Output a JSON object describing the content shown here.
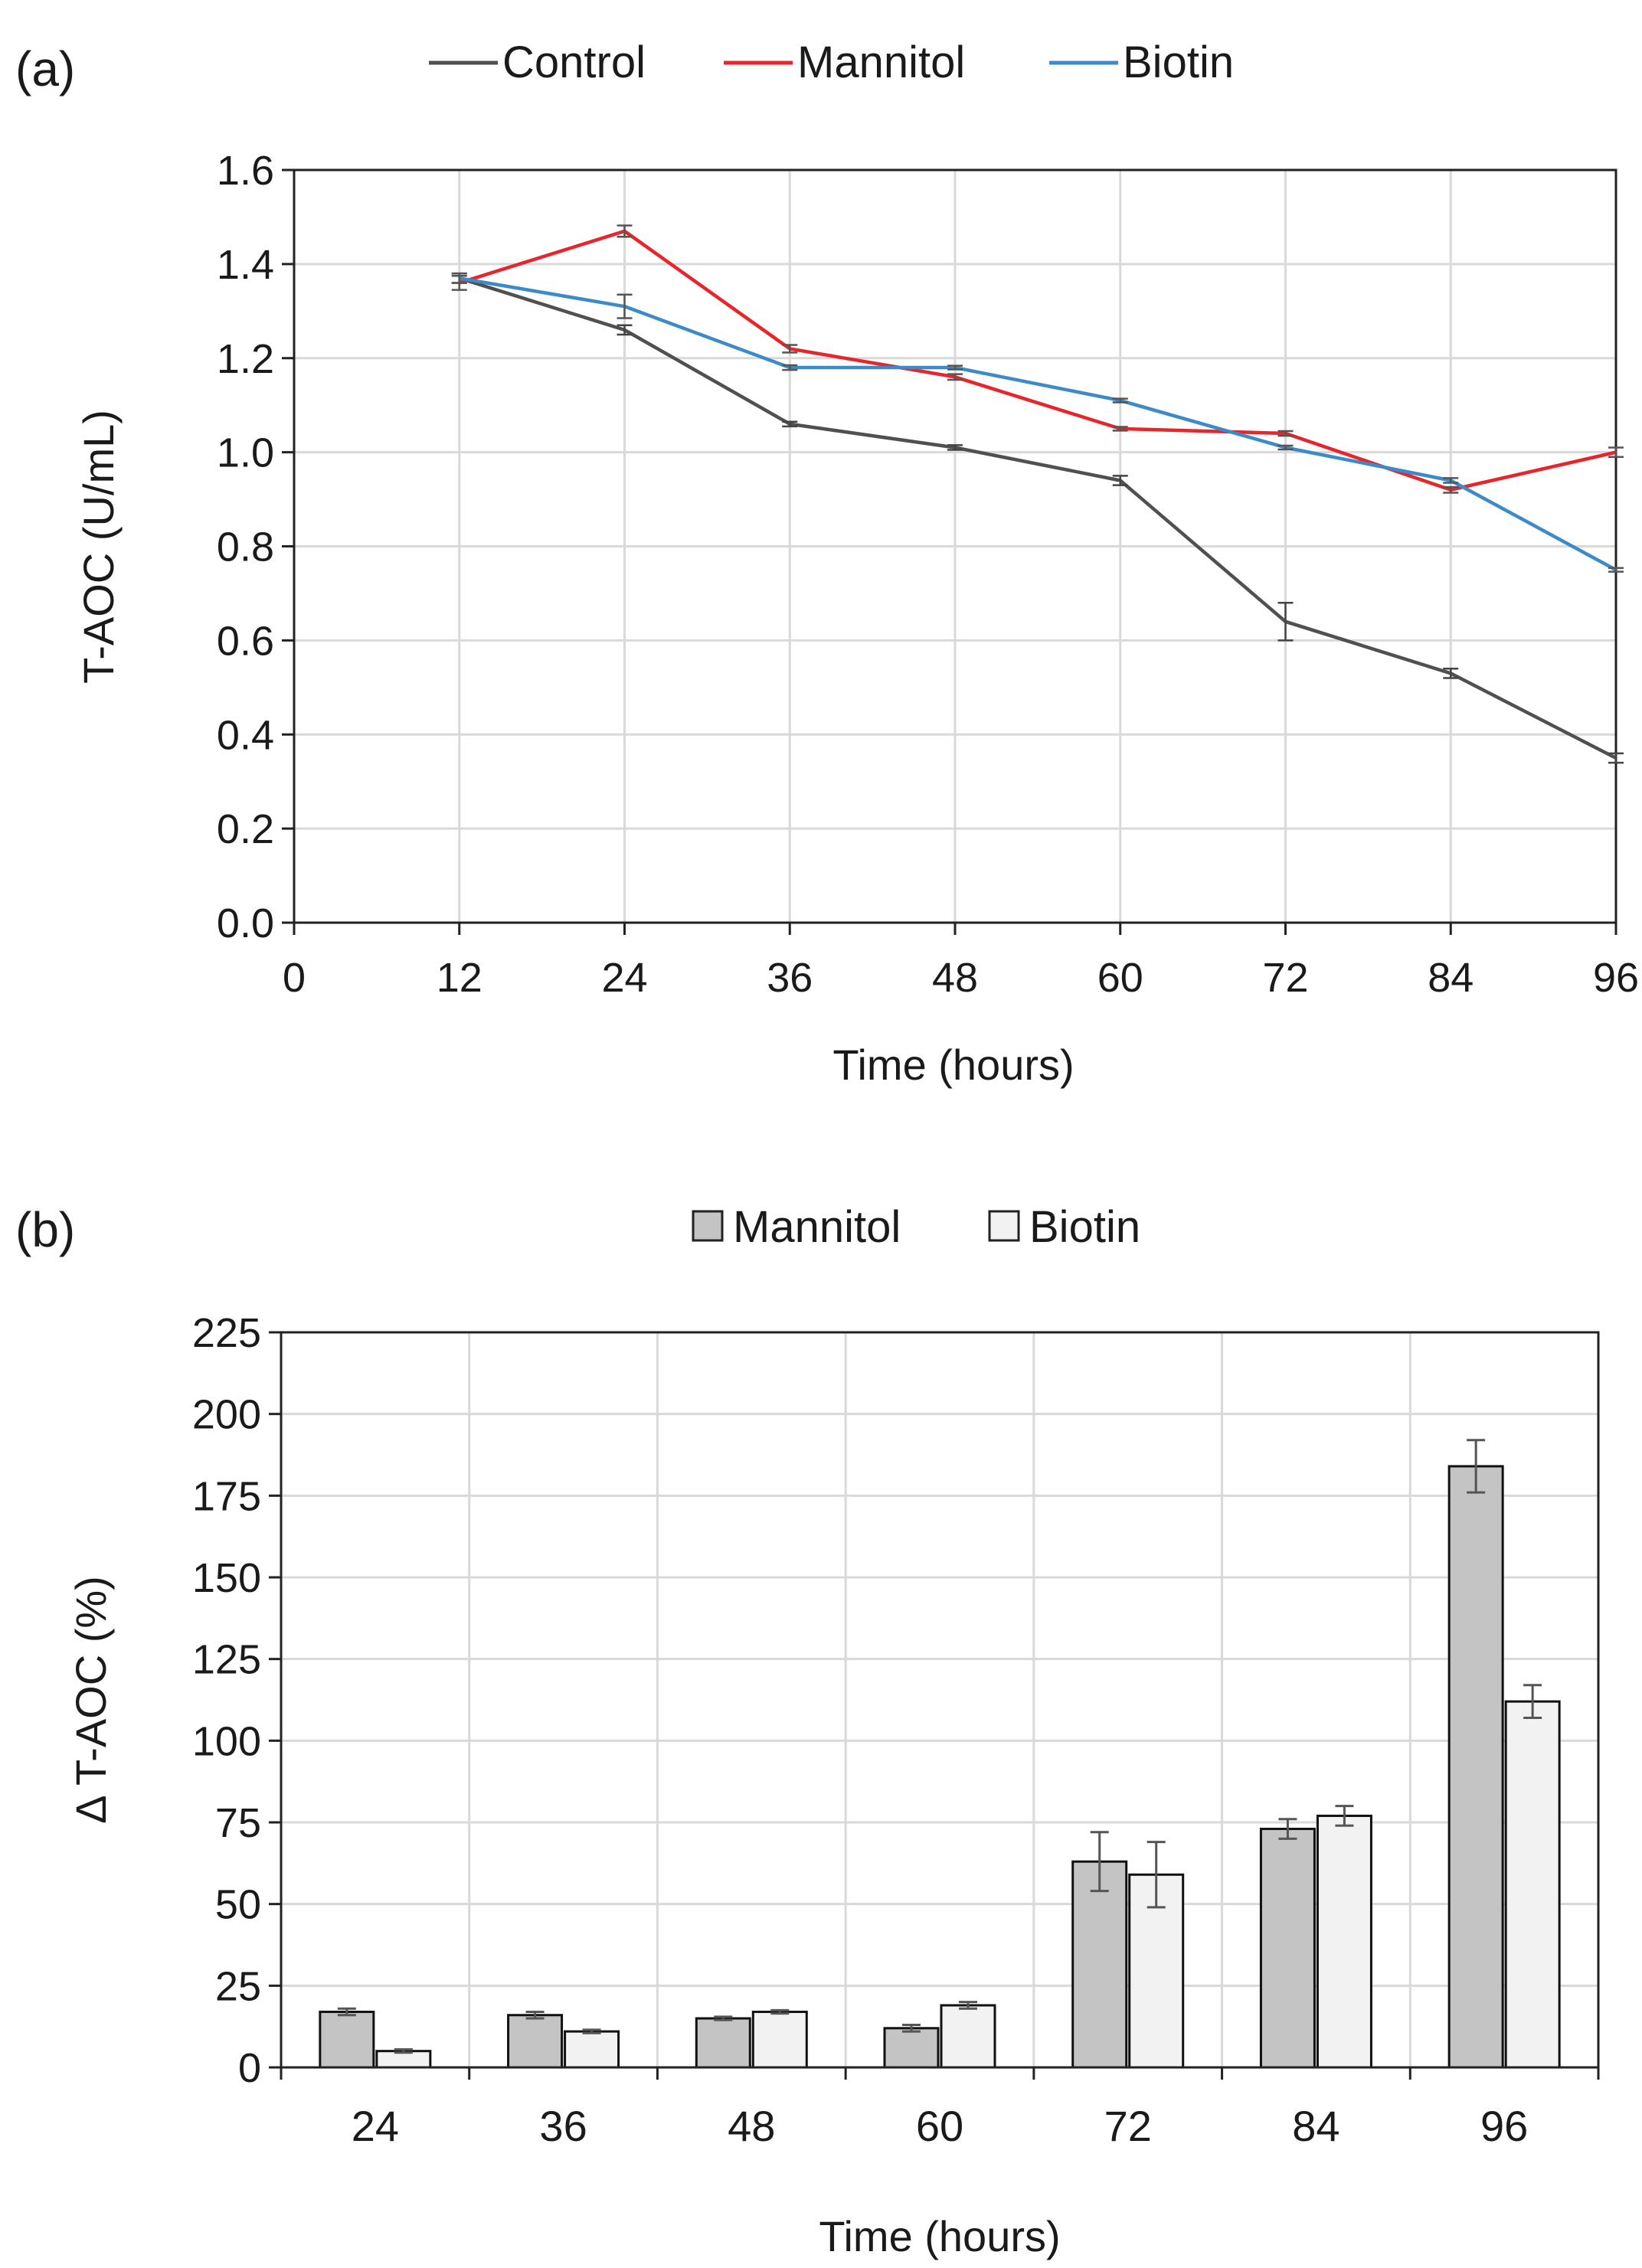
{
  "chart_data": [
    {
      "type": "line",
      "panel_label": "(a)",
      "xlabel": "Time (hours)",
      "ylabel": "T-AOC (U/mL)",
      "xlim": [
        0,
        96
      ],
      "ylim": [
        0,
        1.6
      ],
      "x_ticks": [
        "0",
        "12",
        "24",
        "36",
        "48",
        "60",
        "72",
        "84",
        "96"
      ],
      "y_ticks": [
        "0.0",
        "0.2",
        "0.4",
        "0.6",
        "0.8",
        "1.0",
        "1.2",
        "1.4",
        "1.6"
      ],
      "grid": true,
      "legend": "top-center",
      "x": [
        12,
        24,
        36,
        48,
        60,
        72,
        84,
        96
      ],
      "series": [
        {
          "name": "Control",
          "color": "#505050",
          "values": [
            1.37,
            1.26,
            1.06,
            1.01,
            0.94,
            0.64,
            0.53,
            0.35
          ],
          "errors": [
            0.01,
            0.01,
            0.005,
            0.005,
            0.01,
            0.04,
            0.01,
            0.01
          ]
        },
        {
          "name": "Mannitol",
          "color": "#e8252b",
          "values": [
            1.36,
            1.47,
            1.22,
            1.16,
            1.05,
            1.04,
            0.92,
            1.0
          ],
          "errors": [
            0.015,
            0.012,
            0.008,
            0.006,
            0.004,
            0.005,
            0.006,
            0.01
          ]
        },
        {
          "name": "Biotin",
          "color": "#3c8ac8",
          "values": [
            1.37,
            1.31,
            1.18,
            1.18,
            1.11,
            1.01,
            0.94,
            0.75
          ],
          "errors": [
            0.01,
            0.025,
            0.005,
            0.004,
            0.004,
            0.004,
            0.005,
            0.004
          ]
        }
      ]
    },
    {
      "type": "bar",
      "panel_label": "(b)",
      "xlabel": "Time (hours)",
      "ylabel": "Δ T-AOC (%)",
      "ylim": [
        0,
        225
      ],
      "y_ticks": [
        "0",
        "25",
        "50",
        "75",
        "100",
        "125",
        "150",
        "175",
        "200",
        "225"
      ],
      "grid": true,
      "legend": "top-center",
      "categories": [
        "24",
        "36",
        "48",
        "60",
        "72",
        "84",
        "96"
      ],
      "series": [
        {
          "name": "Mannitol",
          "color": "#c4c4c4",
          "values": [
            17,
            16,
            15,
            12,
            63,
            73,
            184
          ],
          "errors": [
            1,
            1,
            0.5,
            1,
            9,
            3,
            8
          ]
        },
        {
          "name": "Biotin",
          "color": "#f2f2f2",
          "values": [
            5,
            11,
            17,
            19,
            59,
            77,
            112
          ],
          "errors": [
            0.5,
            0.5,
            0.5,
            1,
            10,
            3,
            5
          ]
        }
      ]
    }
  ]
}
